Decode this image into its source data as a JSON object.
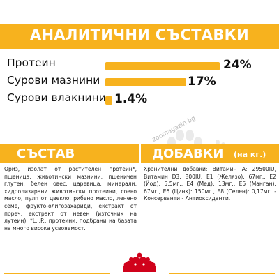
{
  "header": {
    "title": "АНАЛИТИЧНИ СЪСТАВКИ"
  },
  "metrics": [
    {
      "label": "Протеин",
      "value": "24%",
      "percent": 24
    },
    {
      "label": "Сурови мазнини",
      "value": "17%",
      "percent": 17
    },
    {
      "label": "Сурови влакнини",
      "value": "1.4%",
      "percent": 1.4
    }
  ],
  "watermark": {
    "text": "zoomagazin.bg"
  },
  "composition": {
    "title": "СЪСТАВ",
    "text": "Ориз, изолат от растителен протеин*, пшеница, животински мазнини, пшеничен глутен, белен овес, царевица, минерали, хидролизирани животински протеини, соево масло, пулп от цвекло, рибено масло, ленено семе, фрукто-олигозахариди, екстракт от пореч, екстракт от невен (източник на лутеин). *L.I.P.: протеини, подбрани на базата на много висока усвояемост."
  },
  "additives": {
    "title": "ДОБАВКИ",
    "unit": "(на кг.)",
    "text": "Хранителни добавки: Витамин A: 29500IU, Витамин D3: 800IU, E1 (Желязо): 67мг., E2 (Йод): 5,5мг., E4 (Мед): 13мг., E5 (Манган): 67мг., E6 (Цинк): 150мг., E8 (Селен): 0,17мг. - Консерванти - Антиоксиданти."
  },
  "colors": {
    "accent": "#f7b21e",
    "brand_red": "#d0021b"
  },
  "icons": {
    "watermark": "paw-icon",
    "brand": "crown-logo"
  }
}
